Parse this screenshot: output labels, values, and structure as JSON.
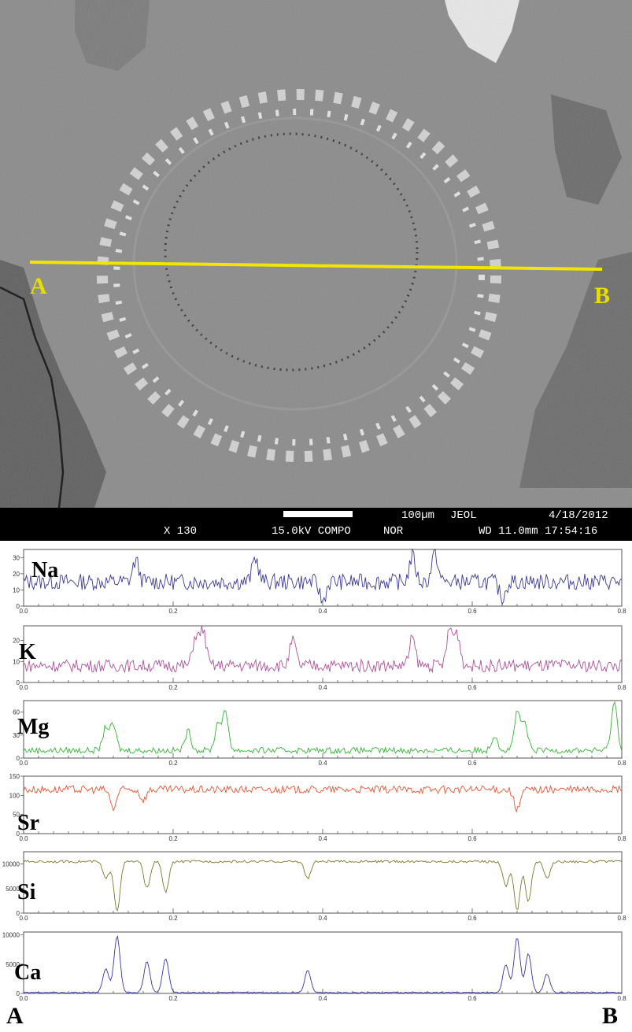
{
  "micrograph": {
    "point_a": "A",
    "point_b": "B",
    "line_color": "#f2e600",
    "info": {
      "magnification": "X 130",
      "voltage_mode": "15.0kV COMPO",
      "scale": "100µm",
      "brand": "JEOL",
      "date": "4/18/2012",
      "mode": "NOR",
      "wd_time": "WD 11.0mm 17:54:16"
    }
  },
  "end_labels": {
    "left": "A",
    "right": "B"
  },
  "chart_data": [
    {
      "type": "line",
      "series": [
        {
          "name": "Na",
          "color": "#3a3a9a"
        }
      ],
      "xlim": [
        0,
        0.8
      ],
      "ylim": [
        0,
        35
      ],
      "xticks": [
        "0.0",
        "0.2",
        "0.4",
        "0.6",
        "0.8"
      ],
      "yticks": [
        0,
        10,
        20,
        30
      ],
      "base": 15,
      "noise": 5,
      "peaks": [
        [
          0.15,
          28
        ],
        [
          0.31,
          30
        ],
        [
          0.52,
          31
        ],
        [
          0.55,
          33
        ]
      ],
      "dips": [
        [
          0.4,
          3
        ],
        [
          0.64,
          5
        ]
      ]
    },
    {
      "type": "line",
      "series": [
        {
          "name": "K",
          "color": "#b0509a"
        }
      ],
      "xlim": [
        0,
        0.8
      ],
      "ylim": [
        0,
        27
      ],
      "xticks": [
        "0.0",
        "0.2",
        "0.4",
        "0.6",
        "0.8"
      ],
      "yticks": [
        0,
        10,
        20
      ],
      "base": 8,
      "noise": 3,
      "peaks": [
        [
          0.23,
          22
        ],
        [
          0.24,
          25
        ],
        [
          0.36,
          20
        ],
        [
          0.52,
          21
        ],
        [
          0.57,
          25
        ],
        [
          0.58,
          23
        ]
      ],
      "dips": []
    },
    {
      "type": "line",
      "series": [
        {
          "name": "Mg",
          "color": "#35b535"
        }
      ],
      "xlim": [
        0,
        0.8
      ],
      "ylim": [
        0,
        75
      ],
      "xticks": [
        "0.0",
        "0.2",
        "0.4",
        "0.6",
        "0.8"
      ],
      "yticks": [
        0,
        30,
        60
      ],
      "base": 10,
      "noise": 4,
      "peaks": [
        [
          0.11,
          40
        ],
        [
          0.12,
          42
        ],
        [
          0.22,
          35
        ],
        [
          0.26,
          45
        ],
        [
          0.27,
          58
        ],
        [
          0.63,
          30
        ],
        [
          0.66,
          58
        ],
        [
          0.67,
          45
        ],
        [
          0.79,
          72
        ]
      ],
      "dips": []
    },
    {
      "type": "line",
      "series": [
        {
          "name": "Sr",
          "color": "#e85530"
        }
      ],
      "xlim": [
        0,
        0.8
      ],
      "ylim": [
        0,
        150
      ],
      "xticks": [
        "0.0",
        "0.2",
        "0.4",
        "0.6",
        "0.8"
      ],
      "yticks": [
        0,
        50,
        100,
        150
      ],
      "base": 115,
      "noise": 10,
      "peaks": [],
      "dips": [
        [
          0.12,
          65
        ],
        [
          0.16,
          88
        ],
        [
          0.66,
          60
        ]
      ]
    },
    {
      "type": "line",
      "series": [
        {
          "name": "Si",
          "color": "#7a7a30"
        }
      ],
      "xlim": [
        0,
        0.8
      ],
      "ylim": [
        0,
        12500
      ],
      "xticks": [
        "0.0",
        "0.2",
        "0.4",
        "0.6",
        "0.8"
      ],
      "yticks": [
        0,
        5000,
        10000
      ],
      "base": 10500,
      "noise": 250,
      "peaks": [],
      "dips": [
        [
          0.11,
          7000
        ],
        [
          0.125,
          500
        ],
        [
          0.165,
          5000
        ],
        [
          0.19,
          4200
        ],
        [
          0.38,
          7000
        ],
        [
          0.645,
          5500
        ],
        [
          0.66,
          600
        ],
        [
          0.675,
          2500
        ],
        [
          0.7,
          7000
        ]
      ]
    },
    {
      "type": "line",
      "series": [
        {
          "name": "Ca",
          "color": "#3535b0"
        }
      ],
      "xlim": [
        0,
        0.8
      ],
      "ylim": [
        0,
        10500
      ],
      "xticks": [
        "0.0",
        "0.2",
        "0.4",
        "0.6",
        "0.8"
      ],
      "yticks": [
        0,
        5000,
        10000
      ],
      "base": 150,
      "noise": 100,
      "peaks": [
        [
          0.11,
          4200
        ],
        [
          0.125,
          9800
        ],
        [
          0.165,
          5500
        ],
        [
          0.19,
          6000
        ],
        [
          0.38,
          4000
        ],
        [
          0.645,
          5000
        ],
        [
          0.66,
          9500
        ],
        [
          0.675,
          6800
        ],
        [
          0.7,
          3300
        ]
      ],
      "dips": []
    }
  ]
}
